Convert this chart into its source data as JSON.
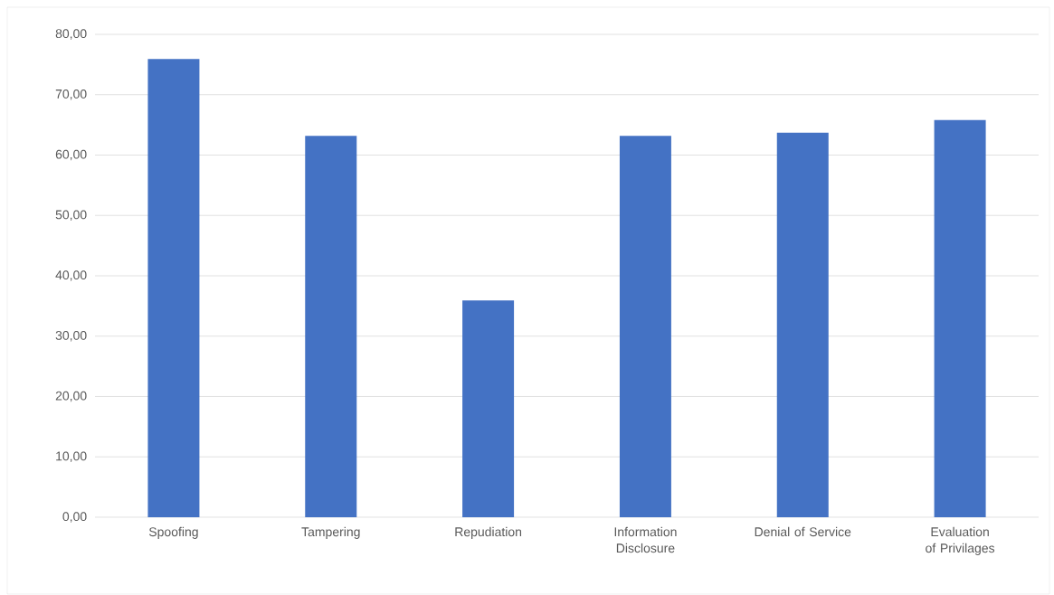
{
  "chart_data": {
    "type": "bar",
    "categories": [
      "Spoofing",
      "Tampering",
      "Repudiation",
      "Information Disclosure",
      "Denial of Service",
      "Evaluation of Privilages"
    ],
    "values": [
      75.9,
      63.2,
      35.9,
      63.2,
      63.7,
      65.8
    ],
    "color": "#4472c4",
    "ylim": [
      0,
      80
    ],
    "yticks": [
      {
        "value": 0,
        "label": "0,00"
      },
      {
        "value": 10,
        "label": "10,00"
      },
      {
        "value": 20,
        "label": "20,00"
      },
      {
        "value": 30,
        "label": "30,00"
      },
      {
        "value": 40,
        "label": "40,00"
      },
      {
        "value": 50,
        "label": "50,00"
      },
      {
        "value": 60,
        "label": "60,00"
      },
      {
        "value": 70,
        "label": "70,00"
      },
      {
        "value": 80,
        "label": "80,00"
      }
    ],
    "grid": "y"
  }
}
